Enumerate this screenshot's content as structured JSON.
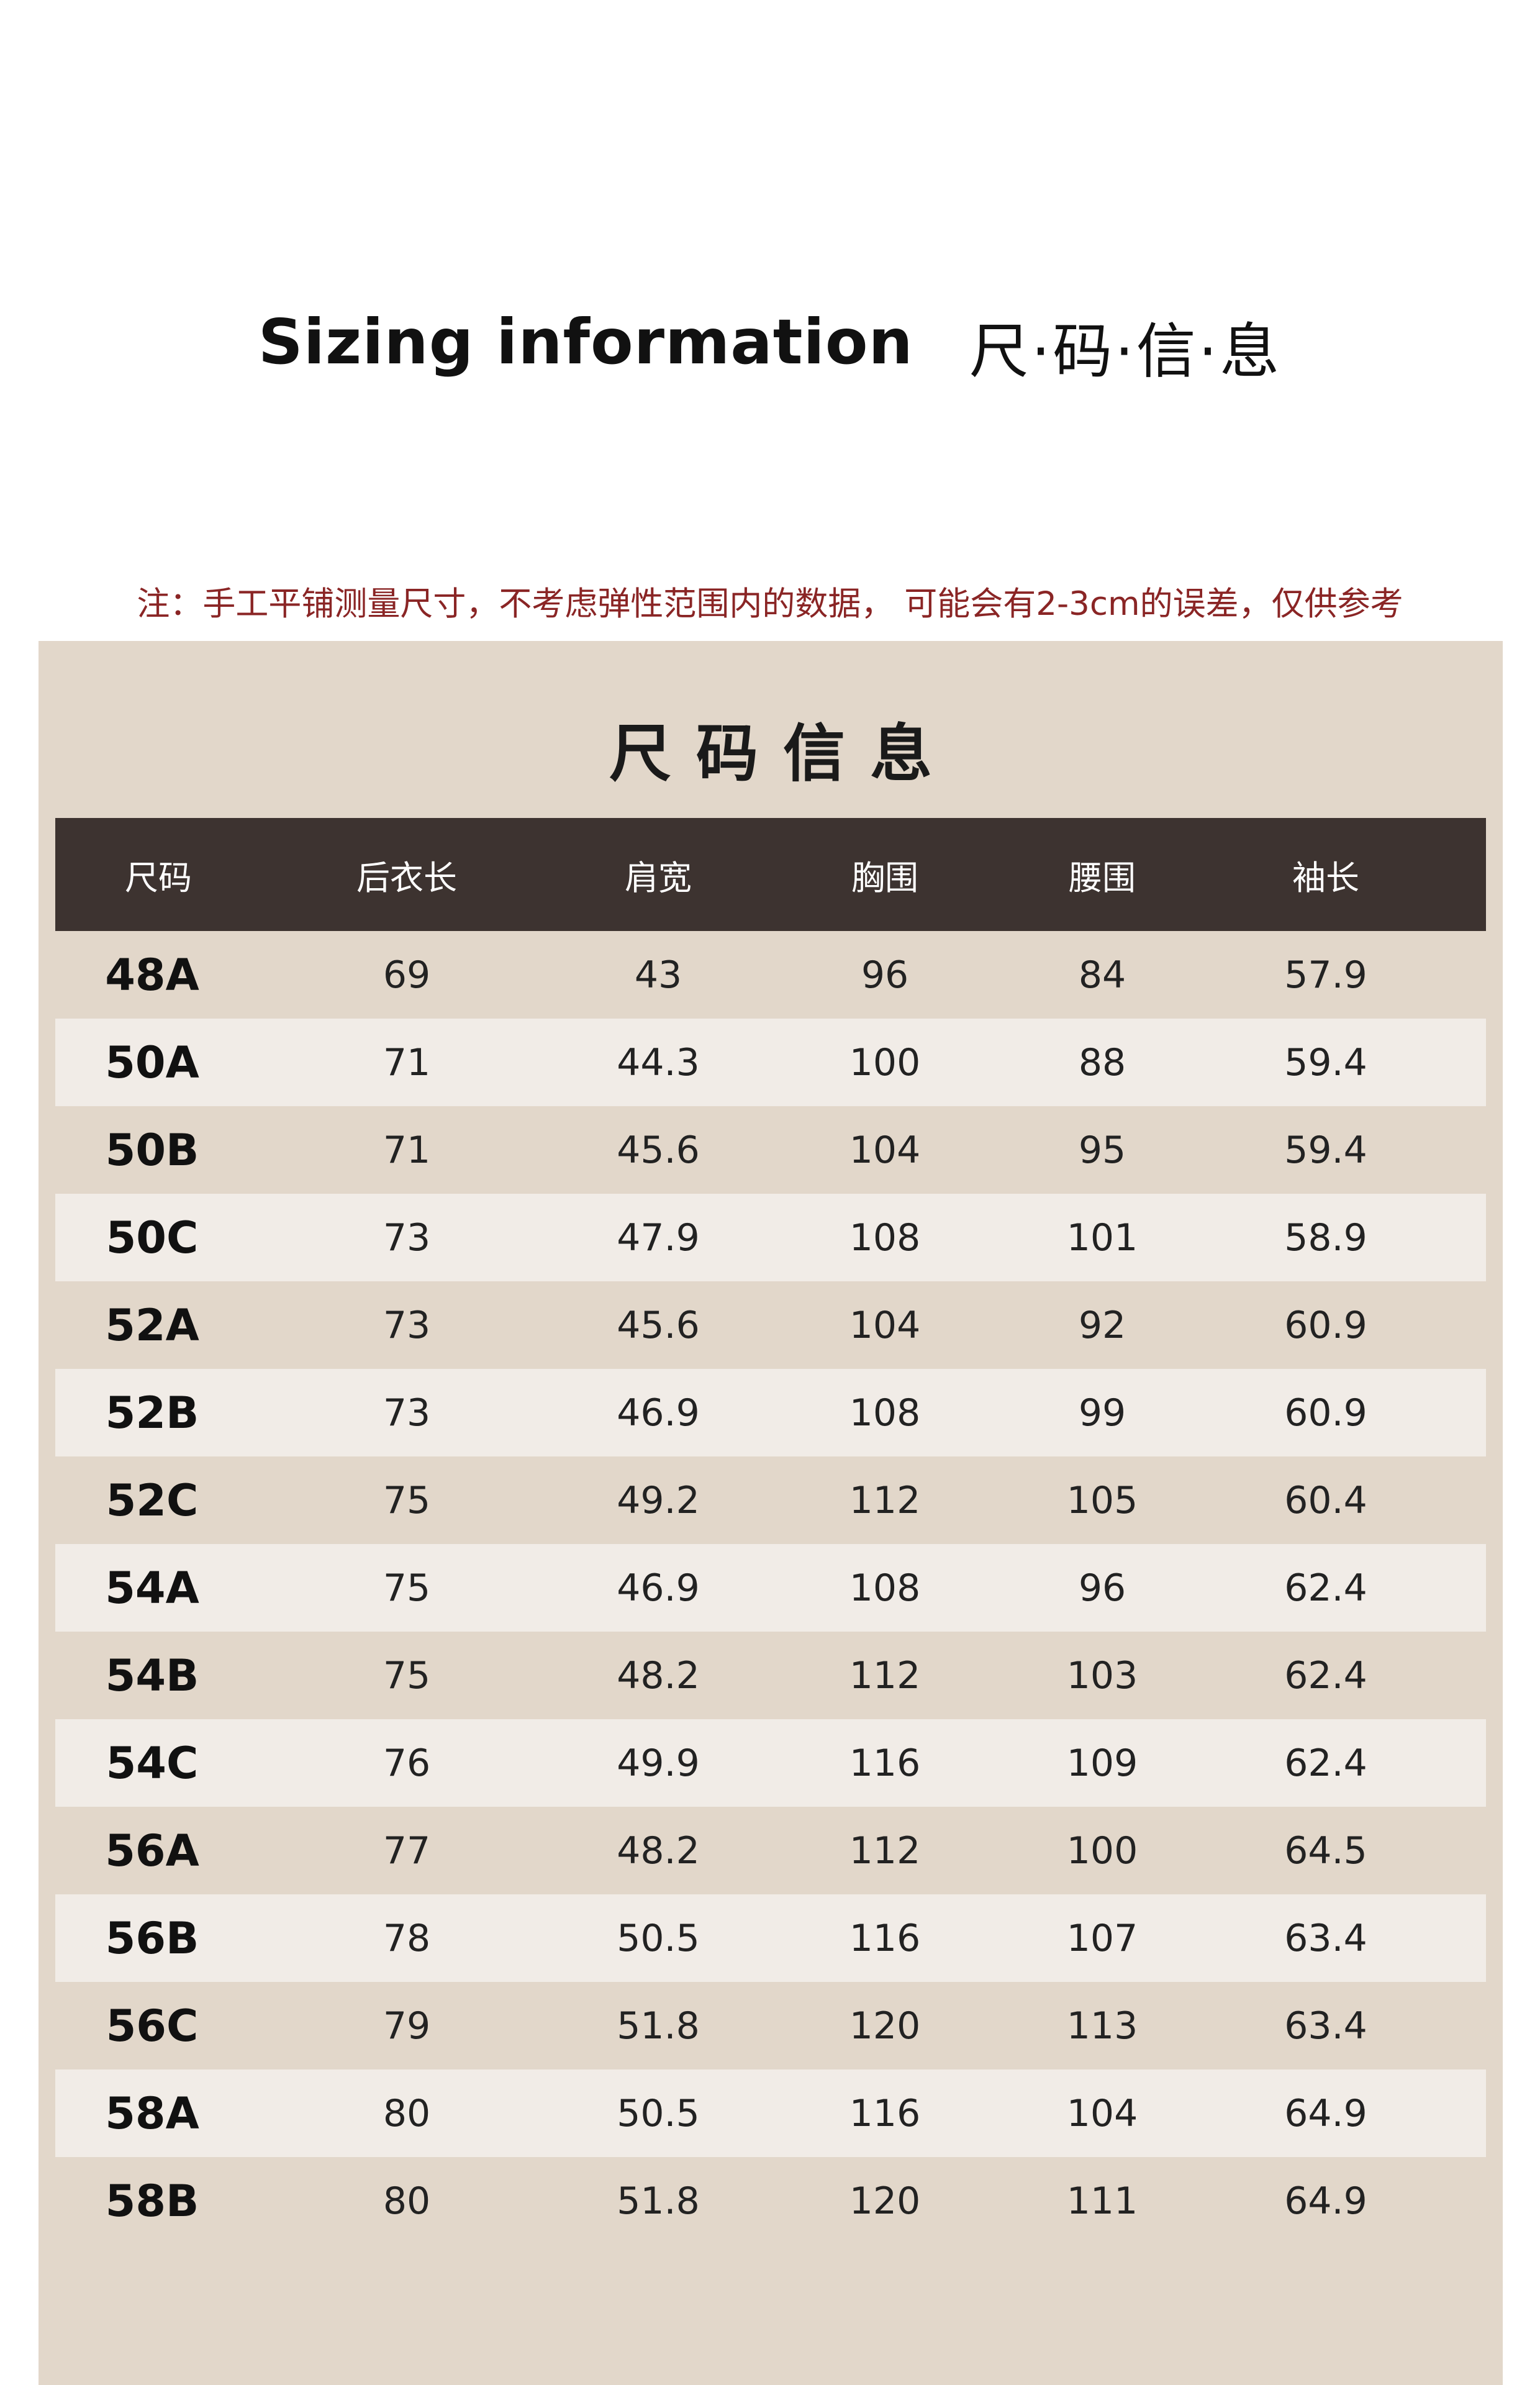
{
  "header": {
    "title_en": "Sizing information",
    "title_zh": "尺·码·信·息"
  },
  "note": "注：手工平铺测量尺寸，不考虑弹性范围内的数据， 可能会有2-3cm的误差，仅供参考",
  "panel": {
    "title": "尺码信息"
  },
  "table": {
    "columns": [
      "尺码",
      "后衣长",
      "肩宽",
      "胸围",
      "腰围",
      "袖长"
    ],
    "rows": [
      [
        "48A",
        "69",
        "43",
        "96",
        "84",
        "57.9"
      ],
      [
        "50A",
        "71",
        "44.3",
        "100",
        "88",
        "59.4"
      ],
      [
        "50B",
        "71",
        "45.6",
        "104",
        "95",
        "59.4"
      ],
      [
        "50C",
        "73",
        "47.9",
        "108",
        "101",
        "58.9"
      ],
      [
        "52A",
        "73",
        "45.6",
        "104",
        "92",
        "60.9"
      ],
      [
        "52B",
        "73",
        "46.9",
        "108",
        "99",
        "60.9"
      ],
      [
        "52C",
        "75",
        "49.2",
        "112",
        "105",
        "60.4"
      ],
      [
        "54A",
        "75",
        "46.9",
        "108",
        "96",
        "62.4"
      ],
      [
        "54B",
        "75",
        "48.2",
        "112",
        "103",
        "62.4"
      ],
      [
        "54C",
        "76",
        "49.9",
        "116",
        "109",
        "62.4"
      ],
      [
        "56A",
        "77",
        "48.2",
        "112",
        "100",
        "64.5"
      ],
      [
        "56B",
        "78",
        "50.5",
        "116",
        "107",
        "63.4"
      ],
      [
        "56C",
        "79",
        "51.8",
        "120",
        "113",
        "63.4"
      ],
      [
        "58A",
        "80",
        "50.5",
        "116",
        "104",
        "64.9"
      ],
      [
        "58B",
        "80",
        "51.8",
        "120",
        "111",
        "64.9"
      ]
    ]
  },
  "colors": {
    "header_bg": "#3d3330",
    "panel_bg": "#e2d7ca",
    "alt_row_bg": "#f1ece7",
    "note_text": "#8a2525"
  }
}
